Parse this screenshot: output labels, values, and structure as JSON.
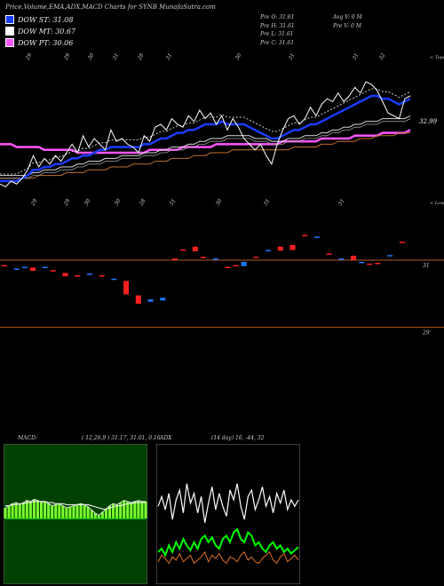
{
  "header": {
    "title": "Price,Volume,EMA,ADX,MACD Charts for SYNB MunafaSutra.com"
  },
  "legend": [
    {
      "label": "DOW ST: 31.08",
      "color": "#1a3cff"
    },
    {
      "label": "DOW MT: 30.67",
      "color": "#ffffff"
    },
    {
      "label": "DOW PT: 30.06",
      "color": "#ff55ff"
    }
  ],
  "ohlc": [
    "Pre  O: 31.61",
    "Pre  H: 31.61",
    "Pre  L: 31.61",
    "Pre  C: 31.61"
  ],
  "volinfo": [
    "Avg V: 0  M",
    "Pre  V: 0  M"
  ],
  "colors": {
    "dow_st": "#1a3cff",
    "dow_mt": "#ffffff",
    "dow_pt": "#ff55ff",
    "macd_panel": "#004000",
    "level_line": "#b55a1e",
    "up_candle": "#1e78ff",
    "down_candle": "#ff2020"
  },
  "chart_data": [
    {
      "name": "price_ema",
      "type": "line",
      "corner_label": "< Topo",
      "top_date_labels": [
        "29",
        "29",
        "30",
        "31",
        "28",
        "31",
        "30",
        "31",
        "31",
        "32"
      ],
      "price_label": "32.99",
      "ylim": [
        29.5,
        34.5
      ],
      "price": [
        29.9,
        29.8,
        30.0,
        29.9,
        30.1,
        30.4,
        30.9,
        30.5,
        30.8,
        30.6,
        30.9,
        30.7,
        31.0,
        31.3,
        31.0,
        31.6,
        31.2,
        31.5,
        31.3,
        31.1,
        31.8,
        31.4,
        31.5,
        31.3,
        31.2,
        31.0,
        31.6,
        31.4,
        31.9,
        32.0,
        31.8,
        32.2,
        32.0,
        31.9,
        32.3,
        32.1,
        32.5,
        32.2,
        32.4,
        32.0,
        32.3,
        31.8,
        32.2,
        31.9,
        31.5,
        31.3,
        31.1,
        31.3,
        30.9,
        30.6,
        31.3,
        31.8,
        32.2,
        32.3,
        32.0,
        32.2,
        32.6,
        32.3,
        32.7,
        32.9,
        32.8,
        33.1,
        32.8,
        33.0,
        33.3,
        33.1,
        33.5,
        33.4,
        33.2,
        32.8,
        32.4,
        32.3,
        32.2,
        32.9,
        33.0
      ],
      "ema_st": [
        30.0,
        30.0,
        30.0,
        30.0,
        30.1,
        30.2,
        30.4,
        30.4,
        30.5,
        30.5,
        30.6,
        30.6,
        30.7,
        30.8,
        30.8,
        30.9,
        30.9,
        31.0,
        31.1,
        31.1,
        31.2,
        31.2,
        31.2,
        31.2,
        31.2,
        31.2,
        31.3,
        31.3,
        31.4,
        31.5,
        31.5,
        31.6,
        31.7,
        31.7,
        31.8,
        31.8,
        31.9,
        32.0,
        32.0,
        32.0,
        32.1,
        32.0,
        32.0,
        32.0,
        32.0,
        31.9,
        31.8,
        31.7,
        31.6,
        31.5,
        31.5,
        31.6,
        31.7,
        31.8,
        31.8,
        31.9,
        32.0,
        32.0,
        32.1,
        32.2,
        32.3,
        32.4,
        32.5,
        32.6,
        32.7,
        32.8,
        32.9,
        33.0,
        33.0,
        32.9,
        32.9,
        32.8,
        32.7,
        32.8,
        32.9
      ],
      "ema_mt": [
        30.2,
        30.2,
        30.2,
        30.2,
        30.2,
        30.2,
        30.3,
        30.3,
        30.4,
        30.4,
        30.4,
        30.5,
        30.5,
        30.5,
        30.6,
        30.6,
        30.7,
        30.7,
        30.7,
        30.8,
        30.8,
        30.8,
        30.9,
        30.9,
        30.9,
        30.9,
        31.0,
        31.0,
        31.0,
        31.1,
        31.1,
        31.2,
        31.2,
        31.2,
        31.3,
        31.3,
        31.4,
        31.4,
        31.5,
        31.5,
        31.5,
        31.6,
        31.6,
        31.6,
        31.6,
        31.6,
        31.5,
        31.5,
        31.5,
        31.4,
        31.4,
        31.4,
        31.5,
        31.5,
        31.5,
        31.6,
        31.6,
        31.6,
        31.7,
        31.7,
        31.8,
        31.8,
        31.9,
        31.9,
        32.0,
        32.0,
        32.1,
        32.1,
        32.1,
        32.2,
        32.2,
        32.2,
        32.2,
        32.2,
        32.3
      ],
      "ema_lt": [
        30.1,
        30.1,
        30.1,
        30.1,
        30.1,
        30.1,
        30.1,
        30.2,
        30.2,
        30.2,
        30.2,
        30.2,
        30.3,
        30.3,
        30.3,
        30.3,
        30.4,
        30.4,
        30.4,
        30.4,
        30.5,
        30.5,
        30.5,
        30.5,
        30.6,
        30.6,
        30.6,
        30.6,
        30.7,
        30.7,
        30.7,
        30.8,
        30.8,
        30.8,
        30.8,
        30.9,
        30.9,
        30.9,
        31.0,
        31.0,
        31.0,
        31.0,
        31.1,
        31.1,
        31.1,
        31.1,
        31.1,
        31.1,
        31.1,
        31.1,
        31.1,
        31.1,
        31.1,
        31.2,
        31.2,
        31.2,
        31.2,
        31.2,
        31.3,
        31.3,
        31.3,
        31.4,
        31.4,
        31.4,
        31.4,
        31.5,
        31.5,
        31.5,
        31.6,
        31.6,
        31.6,
        31.6,
        31.7,
        31.7,
        31.7
      ],
      "dow_pt": [
        31.3,
        31.3,
        31.3,
        31.2,
        31.2,
        31.2,
        31.2,
        31.2,
        31.1,
        31.1,
        31.1,
        31.1,
        31.1,
        31.1,
        31.0,
        31.0,
        31.0,
        31.0,
        31.0,
        31.0,
        31.0,
        31.0,
        31.0,
        31.0,
        31.0,
        31.0,
        31.0,
        31.1,
        31.1,
        31.1,
        31.1,
        31.1,
        31.1,
        31.2,
        31.2,
        31.2,
        31.2,
        31.2,
        31.2,
        31.3,
        31.3,
        31.3,
        31.3,
        31.3,
        31.3,
        31.3,
        31.3,
        31.3,
        31.3,
        31.3,
        31.3,
        31.4,
        31.4,
        31.4,
        31.4,
        31.4,
        31.4,
        31.4,
        31.5,
        31.5,
        31.5,
        31.5,
        31.5,
        31.5,
        31.6,
        31.6,
        31.6,
        31.6,
        31.6,
        31.7,
        31.7,
        31.7,
        31.7,
        31.7,
        31.8
      ]
    },
    {
      "name": "volume_price_levels",
      "type": "bar",
      "corner_label": "< Lowest",
      "top_date_labels": [
        "29",
        "29",
        "30",
        "30",
        "28",
        "31",
        "30",
        "31",
        "31"
      ],
      "levels": [
        {
          "label": "31",
          "value": 31
        },
        {
          "label": "29",
          "value": 29
        }
      ],
      "ylim": [
        28.7,
        32.4
      ],
      "candles": [
        {
          "x": 0.0,
          "o": 30.85,
          "c": 30.85
        },
        {
          "x": 0.03,
          "o": 30.75,
          "c": 30.75
        },
        {
          "x": 0.05,
          "o": 30.8,
          "c": 30.8
        },
        {
          "x": 0.07,
          "o": 30.78,
          "c": 30.68
        },
        {
          "x": 0.1,
          "o": 30.8,
          "c": 30.8
        },
        {
          "x": 0.12,
          "o": 30.7,
          "c": 30.7
        },
        {
          "x": 0.15,
          "o": 30.62,
          "c": 30.52
        },
        {
          "x": 0.18,
          "o": 30.55,
          "c": 30.55
        },
        {
          "x": 0.21,
          "o": 30.6,
          "c": 30.6
        },
        {
          "x": 0.24,
          "o": 30.55,
          "c": 30.55
        },
        {
          "x": 0.27,
          "o": 30.45,
          "c": 30.45
        },
        {
          "x": 0.3,
          "o": 30.38,
          "c": 29.98
        },
        {
          "x": 0.33,
          "o": 29.95,
          "c": 29.7
        },
        {
          "x": 0.36,
          "o": 29.76,
          "c": 29.83
        },
        {
          "x": 0.39,
          "o": 29.8,
          "c": 29.88
        },
        {
          "x": 0.42,
          "o": 31.05,
          "c": 31.05
        },
        {
          "x": 0.44,
          "o": 31.32,
          "c": 31.32
        },
        {
          "x": 0.47,
          "o": 31.4,
          "c": 31.26
        },
        {
          "x": 0.49,
          "o": 31.1,
          "c": 31.1
        },
        {
          "x": 0.52,
          "o": 31.05,
          "c": 31.05
        },
        {
          "x": 0.55,
          "o": 30.8,
          "c": 30.8
        },
        {
          "x": 0.57,
          "o": 30.85,
          "c": 30.85
        },
        {
          "x": 0.59,
          "o": 30.82,
          "c": 30.95
        },
        {
          "x": 0.62,
          "o": 31.1,
          "c": 31.1
        },
        {
          "x": 0.65,
          "o": 31.3,
          "c": 31.3
        },
        {
          "x": 0.68,
          "o": 31.4,
          "c": 31.28
        },
        {
          "x": 0.71,
          "o": 31.45,
          "c": 31.3
        },
        {
          "x": 0.74,
          "o": 31.75,
          "c": 31.75
        },
        {
          "x": 0.77,
          "o": 31.7,
          "c": 31.7
        },
        {
          "x": 0.8,
          "o": 31.2,
          "c": 31.2
        },
        {
          "x": 0.83,
          "o": 31.05,
          "c": 31.05
        },
        {
          "x": 0.86,
          "o": 31.13,
          "c": 31.0
        },
        {
          "x": 0.88,
          "o": 30.95,
          "c": 30.95
        },
        {
          "x": 0.9,
          "o": 30.9,
          "c": 30.9
        },
        {
          "x": 0.92,
          "o": 30.92,
          "c": 30.92
        },
        {
          "x": 0.95,
          "o": 31.15,
          "c": 31.15
        },
        {
          "x": 0.98,
          "o": 31.55,
          "c": 31.55
        }
      ]
    },
    {
      "name": "macd",
      "type": "line",
      "label": "MACD:",
      "values_text": "( 12,26,9 ) 31.17, 31.01, 0.16",
      "macd": [
        0.1,
        0.12,
        0.14,
        0.15,
        0.13,
        0.15,
        0.17,
        0.16,
        0.18,
        0.17,
        0.15,
        0.16,
        0.14,
        0.12,
        0.13,
        0.14,
        0.12,
        0.1,
        0.11,
        0.12,
        0.13,
        0.14,
        0.13,
        0.11,
        0.08,
        0.05,
        0.03,
        0.06,
        0.09,
        0.12,
        0.14,
        0.13,
        0.15,
        0.17,
        0.16,
        0.15,
        0.16,
        0.17,
        0.16,
        0.16
      ],
      "signal": [
        0.12,
        0.12,
        0.13,
        0.13,
        0.14,
        0.14,
        0.15,
        0.15,
        0.16,
        0.16,
        0.16,
        0.16,
        0.15,
        0.15,
        0.14,
        0.14,
        0.14,
        0.13,
        0.13,
        0.13,
        0.13,
        0.13,
        0.13,
        0.13,
        0.12,
        0.11,
        0.1,
        0.09,
        0.09,
        0.1,
        0.11,
        0.12,
        0.12,
        0.13,
        0.14,
        0.14,
        0.15,
        0.15,
        0.15,
        0.15
      ]
    },
    {
      "name": "adx",
      "type": "line",
      "label": "ADX",
      "values_text": "(14 day) 16, -44, 32",
      "ylim": [
        0,
        60
      ],
      "plus_di": [
        38,
        44,
        36,
        46,
        30,
        42,
        48,
        34,
        52,
        40,
        46,
        34,
        44,
        28,
        40,
        50,
        36,
        46,
        38,
        32,
        48,
        42,
        52,
        38,
        30,
        44,
        48,
        36,
        42,
        50,
        38,
        44,
        34,
        46,
        40,
        48,
        36,
        42,
        38,
        42
      ],
      "minus_di": [
        10,
        12,
        8,
        14,
        10,
        16,
        12,
        18,
        14,
        11,
        16,
        12,
        18,
        20,
        16,
        19,
        14,
        12,
        18,
        20,
        16,
        22,
        24,
        18,
        16,
        22,
        20,
        14,
        16,
        12,
        10,
        14,
        16,
        12,
        14,
        10,
        12,
        9,
        11,
        13
      ],
      "adx": [
        4,
        8,
        6,
        3,
        7,
        5,
        9,
        4,
        6,
        8,
        3,
        5,
        7,
        10,
        4,
        8,
        6,
        9,
        5,
        3,
        7,
        6,
        4,
        8,
        10,
        5,
        7,
        4,
        3,
        6,
        8,
        10,
        5,
        3,
        7,
        9,
        4,
        6,
        8,
        5
      ]
    }
  ]
}
